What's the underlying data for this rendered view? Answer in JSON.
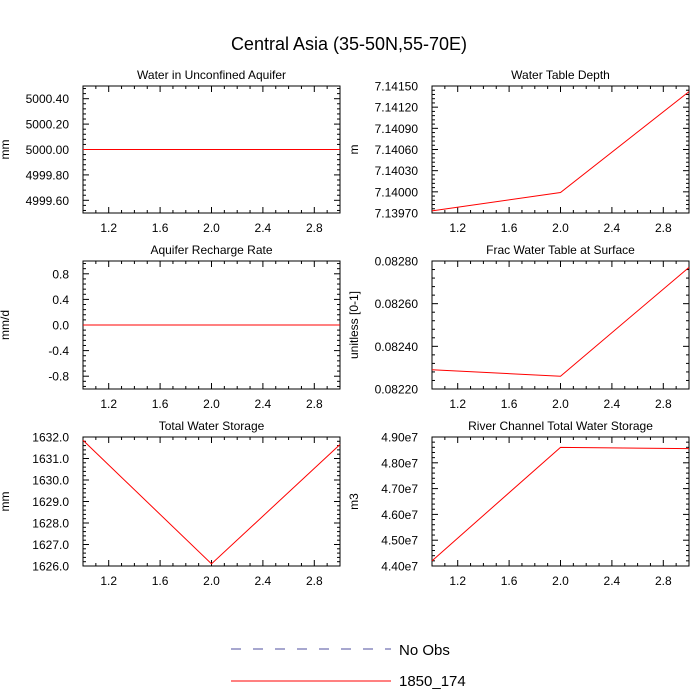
{
  "title": "Central Asia (35-50N,55-70E)",
  "colors": {
    "series_line": "#ff0000",
    "obs_line": "#4f4f9f",
    "axis": "#000000",
    "background": "#ffffff"
  },
  "legend": {
    "placement": "bottom-center",
    "entries": [
      {
        "label": "No Obs",
        "style": "dashed",
        "color": "#4f4f9f"
      },
      {
        "label": "1850_174",
        "style": "solid",
        "color": "#ff0000"
      }
    ]
  },
  "chart_data": [
    {
      "type": "line",
      "title": "Water in Unconfined Aquifer",
      "xlabel": "",
      "ylabel": "mm",
      "xlim": [
        1.0,
        3.0
      ],
      "ylim": [
        4999.5,
        5000.5
      ],
      "x_ticks": [
        "1.2",
        "1.6",
        "2.0",
        "2.4",
        "2.8"
      ],
      "y_ticks": [
        "4999.60",
        "4999.80",
        "5000.00",
        "5000.20",
        "5000.40"
      ],
      "grid": false,
      "series": [
        {
          "name": "1850_174",
          "x": [
            1,
            2,
            3
          ],
          "values": [
            5000.0,
            5000.0,
            5000.0
          ]
        }
      ]
    },
    {
      "type": "line",
      "title": "Water Table Depth",
      "xlabel": "",
      "ylabel": "m",
      "xlim": [
        1.0,
        3.0
      ],
      "ylim": [
        7.1397,
        7.1415
      ],
      "x_ticks": [
        "1.2",
        "1.6",
        "2.0",
        "2.4",
        "2.8"
      ],
      "y_ticks": [
        "7.13970",
        "7.14000",
        "7.14030",
        "7.14060",
        "7.14090",
        "7.14120",
        "7.14150"
      ],
      "grid": false,
      "series": [
        {
          "name": "1850_174",
          "x": [
            1,
            2,
            3
          ],
          "values": [
            7.13973,
            7.13999,
            7.14142
          ]
        }
      ]
    },
    {
      "type": "line",
      "title": "Aquifer Recharge Rate",
      "xlabel": "",
      "ylabel": "mm/d",
      "xlim": [
        1.0,
        3.0
      ],
      "ylim": [
        -1.0,
        1.0
      ],
      "x_ticks": [
        "1.2",
        "1.6",
        "2.0",
        "2.4",
        "2.8"
      ],
      "y_ticks": [
        "-0.8",
        "-0.4",
        "0.0",
        "0.4",
        "0.8"
      ],
      "grid": false,
      "series": [
        {
          "name": "1850_174",
          "x": [
            1,
            2,
            3
          ],
          "values": [
            0.0,
            0.0,
            0.0
          ]
        }
      ]
    },
    {
      "type": "line",
      "title": "Frac Water Table at Surface",
      "xlabel": "",
      "ylabel": "unitless [0-1]",
      "xlim": [
        1.0,
        3.0
      ],
      "ylim": [
        0.0822,
        0.0828
      ],
      "x_ticks": [
        "1.2",
        "1.6",
        "2.0",
        "2.4",
        "2.8"
      ],
      "y_ticks": [
        "0.08220",
        "0.08240",
        "0.08260",
        "0.08280"
      ],
      "grid": false,
      "series": [
        {
          "name": "1850_174",
          "x": [
            1,
            2,
            3
          ],
          "values": [
            0.08229,
            0.08226,
            0.08277
          ]
        }
      ]
    },
    {
      "type": "line",
      "title": "Total Water Storage",
      "xlabel": "",
      "ylabel": "mm",
      "xlim": [
        1.0,
        3.0
      ],
      "ylim": [
        1626.0,
        1632.0
      ],
      "x_ticks": [
        "1.2",
        "1.6",
        "2.0",
        "2.4",
        "2.8"
      ],
      "y_ticks": [
        "1626.0",
        "1627.0",
        "1628.0",
        "1629.0",
        "1630.0",
        "1631.0",
        "1632.0"
      ],
      "grid": false,
      "series": [
        {
          "name": "1850_174",
          "x": [
            1,
            2,
            3
          ],
          "values": [
            1631.85,
            1626.1,
            1631.65
          ]
        }
      ]
    },
    {
      "type": "line",
      "title": "River Channel Total Water Storage",
      "xlabel": "",
      "ylabel": "m3",
      "xlim": [
        1.0,
        3.0
      ],
      "ylim": [
        44000000,
        49000000
      ],
      "x_ticks": [
        "1.2",
        "1.6",
        "2.0",
        "2.4",
        "2.8"
      ],
      "y_ticks": [
        "4.40e7",
        "4.50e7",
        "4.60e7",
        "4.70e7",
        "4.80e7",
        "4.90e7"
      ],
      "grid": false,
      "series": [
        {
          "name": "1850_174",
          "x": [
            1,
            2,
            3
          ],
          "values": [
            44200000,
            48600000,
            48550000
          ]
        }
      ]
    }
  ]
}
